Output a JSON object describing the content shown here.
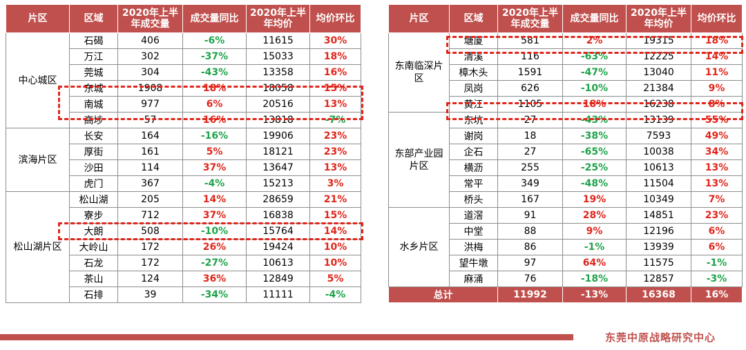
{
  "headers": [
    "片区",
    "区域",
    "2020年上半年成交量",
    "成交量同比",
    "2020年上半年均价",
    "均价环比"
  ],
  "left": [
    {
      "zone": "中心城区",
      "rows": [
        [
          "石碣",
          "406",
          "-6%",
          "11615",
          "30%"
        ],
        [
          "万江",
          "302",
          "-37%",
          "15033",
          "18%"
        ],
        [
          "莞城",
          "304",
          "-43%",
          "13358",
          "16%"
        ],
        [
          "东城",
          "1908",
          "18%",
          "18058",
          "15%"
        ],
        [
          "南城",
          "977",
          "6%",
          "20516",
          "13%"
        ],
        [
          "高埗",
          "57",
          "16%",
          "13818",
          "-7%"
        ]
      ]
    },
    {
      "zone": "滨海片区",
      "rows": [
        [
          "长安",
          "164",
          "-16%",
          "19906",
          "23%"
        ],
        [
          "厚街",
          "161",
          "5%",
          "18121",
          "23%"
        ],
        [
          "沙田",
          "114",
          "37%",
          "13647",
          "13%"
        ],
        [
          "虎门",
          "367",
          "-4%",
          "15213",
          "3%"
        ]
      ]
    },
    {
      "zone": "松山湖片区",
      "rows": [
        [
          "松山湖",
          "205",
          "14%",
          "28659",
          "21%"
        ],
        [
          "寮步",
          "712",
          "37%",
          "16838",
          "15%"
        ],
        [
          "大朗",
          "508",
          "-10%",
          "15764",
          "14%"
        ],
        [
          "大岭山",
          "172",
          "26%",
          "19424",
          "10%"
        ],
        [
          "石龙",
          "172",
          "-27%",
          "10613",
          "10%"
        ],
        [
          "茶山",
          "124",
          "36%",
          "12849",
          "5%"
        ],
        [
          "石排",
          "39",
          "-34%",
          "11111",
          "-4%"
        ]
      ]
    }
  ],
  "right": [
    {
      "zone": "东南临深片区",
      "rows": [
        [
          "塘厦",
          "581",
          "2%",
          "19315",
          "18%"
        ],
        [
          "清溪",
          "116",
          "-63%",
          "12225",
          "14%"
        ],
        [
          "樟木头",
          "1591",
          "-47%",
          "13040",
          "11%"
        ],
        [
          "凤岗",
          "626",
          "-10%",
          "21384",
          "9%"
        ],
        [
          "黄江",
          "1105",
          "18%",
          "16238",
          "8%"
        ]
      ]
    },
    {
      "zone": "东部产业园片区",
      "rows": [
        [
          "东坑",
          "27",
          "-43%",
          "13139",
          "55%"
        ],
        [
          "谢岗",
          "18",
          "-38%",
          "7593",
          "49%"
        ],
        [
          "企石",
          "27",
          "-65%",
          "10038",
          "34%"
        ],
        [
          "横沥",
          "255",
          "-25%",
          "10613",
          "13%"
        ],
        [
          "常平",
          "349",
          "-48%",
          "11504",
          "13%"
        ],
        [
          "桥头",
          "167",
          "19%",
          "10349",
          "7%"
        ]
      ]
    },
    {
      "zone": "水乡片区",
      "rows": [
        [
          "道滘",
          "91",
          "28%",
          "14851",
          "23%"
        ],
        [
          "中堂",
          "88",
          "9%",
          "12196",
          "6%"
        ],
        [
          "洪梅",
          "86",
          "-1%",
          "13939",
          "6%"
        ],
        [
          "望牛墩",
          "97",
          "64%",
          "11575",
          "-1%"
        ],
        [
          "麻涌",
          "76",
          "-18%",
          "12857",
          "-3%"
        ]
      ]
    }
  ],
  "total": [
    "总计",
    "11992",
    "-13%",
    "16368",
    "16%"
  ],
  "footer": "东莞中原战略研究中心",
  "colors": {
    "header": "#c0504d",
    "positive": "#e0261b",
    "negative": "#1fa34a"
  }
}
